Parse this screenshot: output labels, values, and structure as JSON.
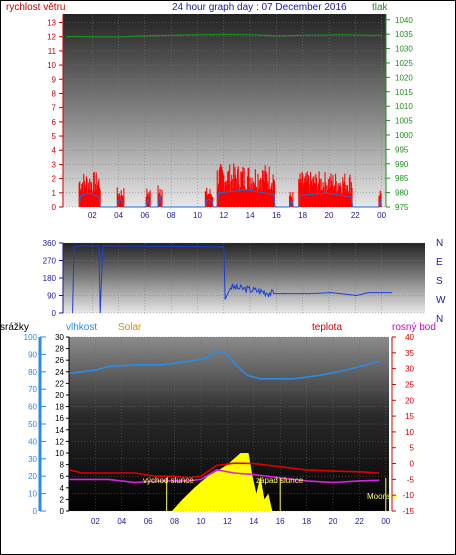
{
  "header": {
    "wind_label": "rychlost větru",
    "title": "24 hour graph day : 07 December 2016",
    "pressure_label": "tlak",
    "rain_label": "srážky",
    "humidity_label": "vlhkost",
    "solar_label": "Solar",
    "temp_label": "teplota",
    "dew_label": "rosný bod",
    "sunrise_label": "východ slunce",
    "sunset_label": "západ slunce",
    "moonset_label": "Moonset"
  },
  "colors": {
    "wind": "#ff0000",
    "wind_avg": "#1a6fd6",
    "pressure": "#1f8f1f",
    "direction": "#1a3fd6",
    "humidity": "#2d8ae6",
    "temperature": "#dd0000",
    "dewpoint": "#dd22dd",
    "solar": "#ffff00",
    "sun_markers": "#ffff66"
  },
  "chart_data": [
    {
      "type": "bar",
      "name": "wind speed",
      "x_ticks": [
        "02",
        "04",
        "06",
        "08",
        "10",
        "12",
        "14",
        "16",
        "18",
        "20",
        "22",
        "00"
      ],
      "y_left_ticks": [
        "0",
        "1",
        "2",
        "3",
        "4",
        "5",
        "6",
        "7",
        "8",
        "9",
        "10",
        "11",
        "12",
        "13"
      ],
      "y_right_ticks": [
        "975",
        "980",
        "985",
        "990",
        "995",
        "1000",
        "1005",
        "1010",
        "1015",
        "1020",
        "1025",
        "1030",
        "1035",
        "1040"
      ],
      "ylim_left": [
        0,
        13.6
      ],
      "ylim_right": [
        975,
        1042
      ],
      "wind_segments": [
        {
          "from": 1.0,
          "to": 2.6,
          "level": 1.8
        },
        {
          "from": 3.9,
          "to": 4.4,
          "level": 1.0
        },
        {
          "from": 6.1,
          "to": 6.4,
          "level": 1.0
        },
        {
          "from": 7.0,
          "to": 7.3,
          "level": 1.4
        },
        {
          "from": 10.6,
          "to": 11.2,
          "level": 1.0
        },
        {
          "from": 11.5,
          "to": 15.9,
          "level": 2.2
        },
        {
          "from": 17.0,
          "to": 17.3,
          "level": 0.8
        },
        {
          "from": 17.7,
          "to": 21.8,
          "level": 1.8
        },
        {
          "from": 23.8,
          "to": 24.0,
          "level": 1.0
        }
      ],
      "pressure": [
        [
          0,
          1034.2
        ],
        [
          4,
          1034.0
        ],
        [
          6,
          1034.4
        ],
        [
          9,
          1034.7
        ],
        [
          12,
          1034.9
        ],
        [
          14,
          1034.8
        ],
        [
          16,
          1034.4
        ],
        [
          18,
          1034.6
        ],
        [
          21,
          1034.8
        ],
        [
          23,
          1034.6
        ],
        [
          24,
          1034.6
        ]
      ]
    },
    {
      "type": "line",
      "name": "wind direction",
      "y_left_ticks": [
        "0",
        "90",
        "180",
        "270",
        "360"
      ],
      "y_right_ticks": [
        "N",
        "W",
        "S",
        "E",
        "N"
      ],
      "ylim": [
        0,
        360
      ],
      "values": [
        [
          0.5,
          0
        ],
        [
          0.6,
          340
        ],
        [
          1.2,
          345
        ],
        [
          2.5,
          345
        ],
        [
          2.6,
          0
        ],
        [
          2.8,
          345
        ],
        [
          12.0,
          340
        ],
        [
          12.1,
          70
        ],
        [
          12.5,
          135
        ],
        [
          15.0,
          110
        ],
        [
          15.8,
          100
        ],
        [
          18.5,
          100
        ],
        [
          20.2,
          105
        ],
        [
          22.1,
          90
        ],
        [
          23.0,
          105
        ],
        [
          24.8,
          105
        ]
      ]
    },
    {
      "type": "line",
      "name": "humidity / temperature / solar",
      "x_ticks": [
        "02",
        "04",
        "06",
        "08",
        "10",
        "12",
        "14",
        "16",
        "18",
        "20",
        "22",
        "00"
      ],
      "y_rain_ticks": [
        "0",
        "10",
        "20",
        "30",
        "40",
        "50",
        "60",
        "70",
        "80",
        "90",
        "100"
      ],
      "y_solar_ticks": [
        "0",
        "2",
        "4",
        "6",
        "8",
        "10",
        "12",
        "14",
        "16",
        "18",
        "20",
        "22",
        "24",
        "26",
        "28",
        "30"
      ],
      "y_temp_ticks": [
        "-15",
        "-10",
        "-5",
        "0",
        "5",
        "10",
        "15",
        "20",
        "25",
        "30",
        "35",
        "40"
      ],
      "ylim_rain": [
        0,
        100
      ],
      "ylim_temp": [
        -15,
        40
      ],
      "humidity": [
        [
          0,
          79
        ],
        [
          1,
          80
        ],
        [
          2,
          81
        ],
        [
          3,
          83
        ],
        [
          5,
          84
        ],
        [
          7,
          84
        ],
        [
          9,
          86
        ],
        [
          10.5,
          88
        ],
        [
          11.2,
          92
        ],
        [
          12,
          90
        ],
        [
          12.5,
          85
        ],
        [
          13.5,
          78
        ],
        [
          14.5,
          76
        ],
        [
          17,
          76
        ],
        [
          19,
          78
        ],
        [
          21,
          81
        ],
        [
          22.5,
          84
        ],
        [
          23.5,
          86
        ]
      ],
      "temperature": [
        [
          0,
          -2
        ],
        [
          1,
          -3
        ],
        [
          3,
          -3
        ],
        [
          5,
          -3
        ],
        [
          6.5,
          -4
        ],
        [
          8,
          -4
        ],
        [
          9,
          -4.5
        ],
        [
          10,
          -4
        ],
        [
          11.2,
          -0.6
        ],
        [
          12.5,
          0.1
        ],
        [
          14,
          0
        ],
        [
          16,
          -1
        ],
        [
          18,
          -2
        ],
        [
          20,
          -2.4
        ],
        [
          22,
          -2.6
        ],
        [
          23.5,
          -3
        ]
      ],
      "dewpoint": [
        [
          0,
          -5
        ],
        [
          2,
          -5
        ],
        [
          3,
          -5
        ],
        [
          5,
          -6
        ],
        [
          7,
          -5.5
        ],
        [
          9,
          -5.5
        ],
        [
          10,
          -5
        ],
        [
          11.2,
          -2
        ],
        [
          12.5,
          -3
        ],
        [
          14,
          -3.5
        ],
        [
          16,
          -4.5
        ],
        [
          18,
          -5.5
        ],
        [
          20,
          -6
        ],
        [
          22,
          -5.5
        ],
        [
          23.5,
          -5.3
        ]
      ],
      "solar": [
        [
          7.8,
          0
        ],
        [
          8.6,
          2
        ],
        [
          9.5,
          4
        ],
        [
          10.5,
          6
        ],
        [
          11.3,
          7
        ],
        [
          12.0,
          8
        ],
        [
          12.5,
          9
        ],
        [
          13.0,
          10
        ],
        [
          13.6,
          10
        ],
        [
          13.9,
          6
        ],
        [
          14.2,
          3
        ],
        [
          14.5,
          6
        ],
        [
          14.8,
          2
        ],
        [
          15.1,
          3
        ],
        [
          15.4,
          0
        ]
      ],
      "sunrise_hour": 7.4,
      "sunset_hour": 16.0,
      "moonset_hour": 24.0
    }
  ]
}
